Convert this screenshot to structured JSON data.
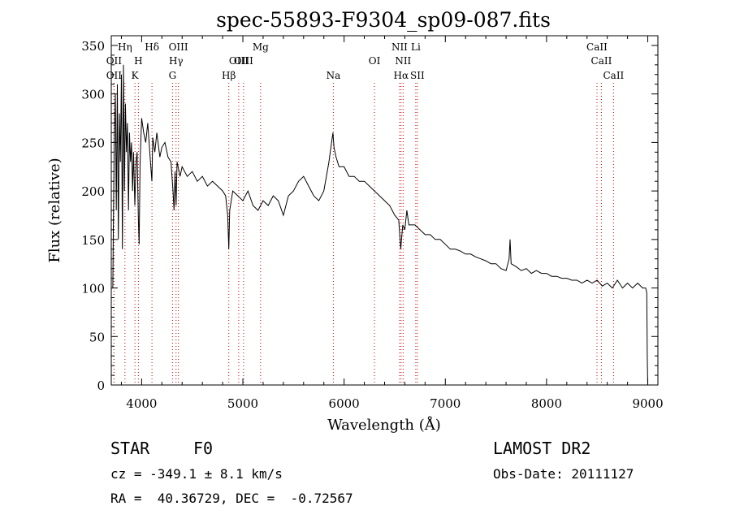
{
  "chart_data": {
    "type": "line",
    "title": "spec-55893-F9304_sp09-087.fits",
    "xlabel": "Wavelength (Å)",
    "ylabel": "Flux (relative)",
    "xlim": [
      3700,
      9100
    ],
    "ylim": [
      0,
      360
    ],
    "x_ticks": [
      4000,
      5000,
      6000,
      7000,
      8000,
      9000
    ],
    "y_ticks": [
      0,
      50,
      100,
      150,
      200,
      250,
      300,
      350
    ],
    "grid": false,
    "series": [
      {
        "color": "#000000",
        "points": [
          [
            3700,
            100
          ],
          [
            3710,
            100
          ],
          [
            3715,
            100
          ],
          [
            3720,
            160
          ],
          [
            3730,
            250
          ],
          [
            3740,
            300
          ],
          [
            3750,
            180
          ],
          [
            3760,
            310
          ],
          [
            3770,
            150
          ],
          [
            3780,
            280
          ],
          [
            3790,
            230
          ],
          [
            3800,
            320
          ],
          [
            3810,
            140
          ],
          [
            3820,
            330
          ],
          [
            3830,
            200
          ],
          [
            3840,
            290
          ],
          [
            3850,
            240
          ],
          [
            3860,
            270
          ],
          [
            3870,
            180
          ],
          [
            3880,
            260
          ],
          [
            3890,
            230
          ],
          [
            3900,
            250
          ],
          [
            3910,
            200
          ],
          [
            3920,
            240
          ],
          [
            3933,
            185
          ],
          [
            3945,
            230
          ],
          [
            3955,
            240
          ],
          [
            3968,
            170
          ],
          [
            3975,
            145
          ],
          [
            3985,
            230
          ],
          [
            4000,
            275
          ],
          [
            4020,
            260
          ],
          [
            4040,
            250
          ],
          [
            4060,
            270
          ],
          [
            4080,
            240
          ],
          [
            4101,
            210
          ],
          [
            4110,
            255
          ],
          [
            4130,
            240
          ],
          [
            4150,
            260
          ],
          [
            4180,
            235
          ],
          [
            4200,
            245
          ],
          [
            4230,
            250
          ],
          [
            4260,
            235
          ],
          [
            4290,
            230
          ],
          [
            4310,
            200
          ],
          [
            4320,
            180
          ],
          [
            4330,
            220
          ],
          [
            4340,
            185
          ],
          [
            4350,
            230
          ],
          [
            4380,
            215
          ],
          [
            4400,
            225
          ],
          [
            4450,
            215
          ],
          [
            4500,
            220
          ],
          [
            4550,
            210
          ],
          [
            4600,
            215
          ],
          [
            4650,
            205
          ],
          [
            4700,
            210
          ],
          [
            4750,
            205
          ],
          [
            4800,
            200
          ],
          [
            4830,
            195
          ],
          [
            4850,
            175
          ],
          [
            4861,
            140
          ],
          [
            4870,
            180
          ],
          [
            4900,
            200
          ],
          [
            4950,
            195
          ],
          [
            5000,
            190
          ],
          [
            5050,
            200
          ],
          [
            5100,
            185
          ],
          [
            5150,
            180
          ],
          [
            5200,
            190
          ],
          [
            5250,
            185
          ],
          [
            5300,
            195
          ],
          [
            5350,
            190
          ],
          [
            5400,
            175
          ],
          [
            5450,
            195
          ],
          [
            5500,
            200
          ],
          [
            5550,
            210
          ],
          [
            5600,
            215
          ],
          [
            5650,
            205
          ],
          [
            5700,
            195
          ],
          [
            5750,
            190
          ],
          [
            5800,
            200
          ],
          [
            5850,
            230
          ],
          [
            5870,
            245
          ],
          [
            5890,
            260
          ],
          [
            5900,
            245
          ],
          [
            5920,
            235
          ],
          [
            5950,
            225
          ],
          [
            6000,
            225
          ],
          [
            6050,
            215
          ],
          [
            6100,
            215
          ],
          [
            6150,
            210
          ],
          [
            6200,
            210
          ],
          [
            6250,
            205
          ],
          [
            6300,
            200
          ],
          [
            6350,
            195
          ],
          [
            6400,
            190
          ],
          [
            6450,
            185
          ],
          [
            6500,
            175
          ],
          [
            6540,
            170
          ],
          [
            6560,
            140
          ],
          [
            6563,
            145
          ],
          [
            6580,
            165
          ],
          [
            6600,
            160
          ],
          [
            6620,
            180
          ],
          [
            6640,
            165
          ],
          [
            6700,
            165
          ],
          [
            6750,
            160
          ],
          [
            6800,
            155
          ],
          [
            6850,
            155
          ],
          [
            6900,
            150
          ],
          [
            6950,
            150
          ],
          [
            7000,
            145
          ],
          [
            7050,
            140
          ],
          [
            7100,
            140
          ],
          [
            7150,
            138
          ],
          [
            7200,
            135
          ],
          [
            7250,
            135
          ],
          [
            7300,
            132
          ],
          [
            7350,
            130
          ],
          [
            7400,
            128
          ],
          [
            7450,
            125
          ],
          [
            7500,
            125
          ],
          [
            7550,
            120
          ],
          [
            7600,
            118
          ],
          [
            7630,
            130
          ],
          [
            7640,
            150
          ],
          [
            7650,
            125
          ],
          [
            7700,
            122
          ],
          [
            7750,
            118
          ],
          [
            7800,
            120
          ],
          [
            7850,
            115
          ],
          [
            7900,
            118
          ],
          [
            7950,
            115
          ],
          [
            8000,
            115
          ],
          [
            8050,
            112
          ],
          [
            8100,
            112
          ],
          [
            8150,
            110
          ],
          [
            8200,
            110
          ],
          [
            8250,
            108
          ],
          [
            8300,
            108
          ],
          [
            8350,
            105
          ],
          [
            8400,
            108
          ],
          [
            8450,
            105
          ],
          [
            8500,
            108
          ],
          [
            8550,
            102
          ],
          [
            8600,
            105
          ],
          [
            8650,
            100
          ],
          [
            8700,
            108
          ],
          [
            8750,
            100
          ],
          [
            8800,
            105
          ],
          [
            8850,
            100
          ],
          [
            8900,
            105
          ],
          [
            8950,
            100
          ],
          [
            8980,
            100
          ],
          [
            8990,
            95
          ],
          [
            8995,
            30
          ],
          [
            9000,
            0
          ]
        ]
      }
    ],
    "lines": [
      {
        "label": "OII",
        "x": 3727,
        "row": 2
      },
      {
        "label": "OII",
        "x": 3727,
        "row": 3
      },
      {
        "label": "Hη",
        "x": 3835,
        "row": 1
      },
      {
        "label": "H",
        "x": 3968,
        "row": 2
      },
      {
        "label": "K",
        "x": 3934,
        "row": 3
      },
      {
        "label": "Hδ",
        "x": 4102,
        "row": 1
      },
      {
        "label": "OIII",
        "x": 4363,
        "row": 1
      },
      {
        "label": "Hγ",
        "x": 4340,
        "row": 2
      },
      {
        "label": "G",
        "x": 4305,
        "row": 3
      },
      {
        "label": "Hβ",
        "x": 4861,
        "row": 3
      },
      {
        "label": "OIII",
        "x": 4959,
        "row": 2
      },
      {
        "label": "OIII",
        "x": 5007,
        "row": 2
      },
      {
        "label": "Mg",
        "x": 5175,
        "row": 1
      },
      {
        "label": "Na",
        "x": 5894,
        "row": 3
      },
      {
        "label": "OI",
        "x": 6300,
        "row": 2
      },
      {
        "label": "NII",
        "x": 6548,
        "row": 1
      },
      {
        "label": "NII",
        "x": 6583,
        "row": 2
      },
      {
        "label": "Hα",
        "x": 6563,
        "row": 3
      },
      {
        "label": "Li",
        "x": 6708,
        "row": 1
      },
      {
        "label": "SII",
        "x": 6724,
        "row": 3
      },
      {
        "label": "CaII",
        "x": 8498,
        "row": 1
      },
      {
        "label": "CaII",
        "x": 8542,
        "row": 2
      },
      {
        "label": "CaII",
        "x": 8662,
        "row": 3
      }
    ],
    "line_color": "#cc0000"
  },
  "info": {
    "object_class": "STAR",
    "subclass": "F0",
    "survey": "LAMOST DR2",
    "redshift_text": "cz = -349.1 ± 8.1 km/s",
    "obs_date_text": "Obs-Date: 20111127",
    "coords_text": "RA =  40.36729, DEC =  -0.72567"
  }
}
